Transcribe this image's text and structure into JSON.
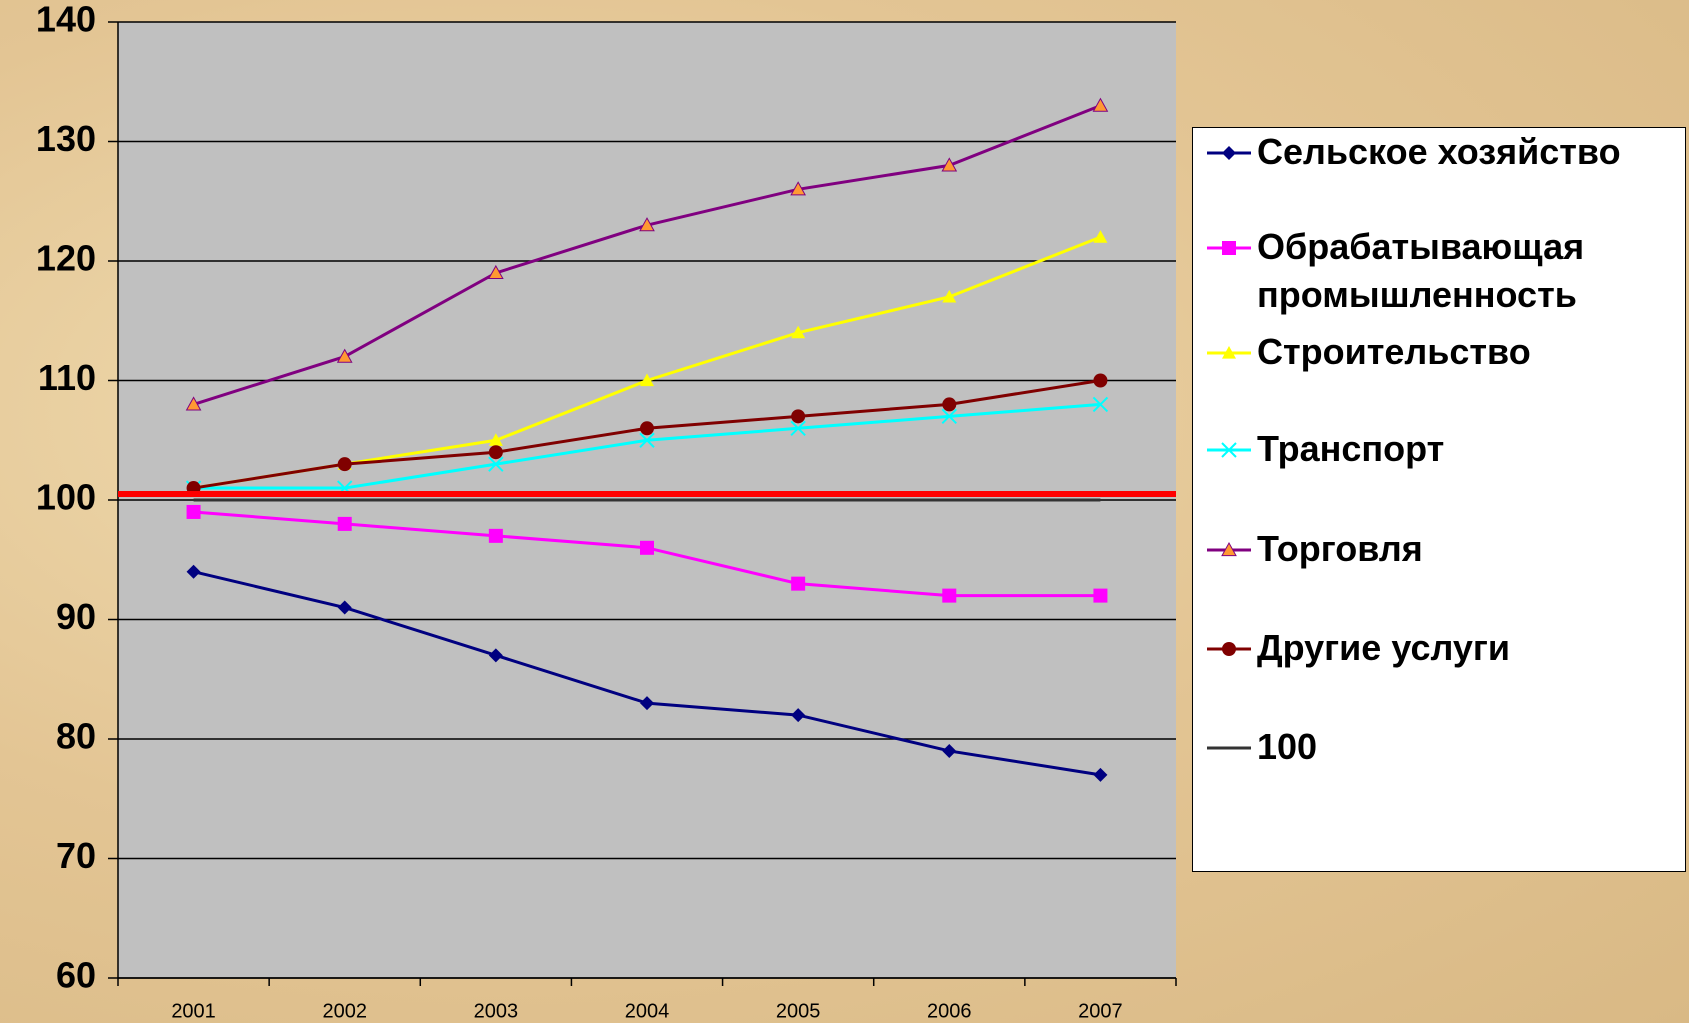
{
  "chart_data": {
    "type": "line",
    "categories": [
      "2001",
      "2002",
      "2003",
      "2004",
      "2005",
      "2006",
      "2007"
    ],
    "series": [
      {
        "name": "Сельское хозяйство",
        "color": "#000080",
        "marker": "diamond",
        "values": [
          94,
          91,
          87,
          83,
          82,
          79,
          77
        ]
      },
      {
        "name": "Обрабатывающая промышленность",
        "color": "#ff00ff",
        "marker": "square",
        "values": [
          99,
          98,
          97,
          96,
          93,
          92,
          92
        ]
      },
      {
        "name": "Строительство",
        "color": "#ffff00",
        "marker": "triangle",
        "values": [
          101,
          103,
          105,
          110,
          114,
          117,
          122
        ]
      },
      {
        "name": "Транспорт",
        "color": "#00ffff",
        "marker": "x",
        "values": [
          101,
          101,
          103,
          105,
          106,
          107,
          108
        ]
      },
      {
        "name": "Торговля",
        "color": "#800080",
        "marker_color": "#ff9933",
        "marker": "triangle",
        "values": [
          108,
          112,
          119,
          123,
          126,
          128,
          133
        ]
      },
      {
        "name": "Другие услуги",
        "color": "#800000",
        "marker": "circle",
        "values": [
          101,
          103,
          104,
          106,
          107,
          108,
          110
        ]
      },
      {
        "name": "100",
        "color": "#333333",
        "marker": "none",
        "values": [
          100,
          100,
          100,
          100,
          100,
          100,
          100
        ]
      }
    ],
    "reference_lines": [
      {
        "value": 100.5,
        "color": "#ff0000"
      }
    ],
    "ylim": [
      60,
      140
    ],
    "yticks": [
      60,
      70,
      80,
      90,
      100,
      110,
      120,
      130,
      140
    ],
    "grid": true,
    "legend": "right"
  }
}
